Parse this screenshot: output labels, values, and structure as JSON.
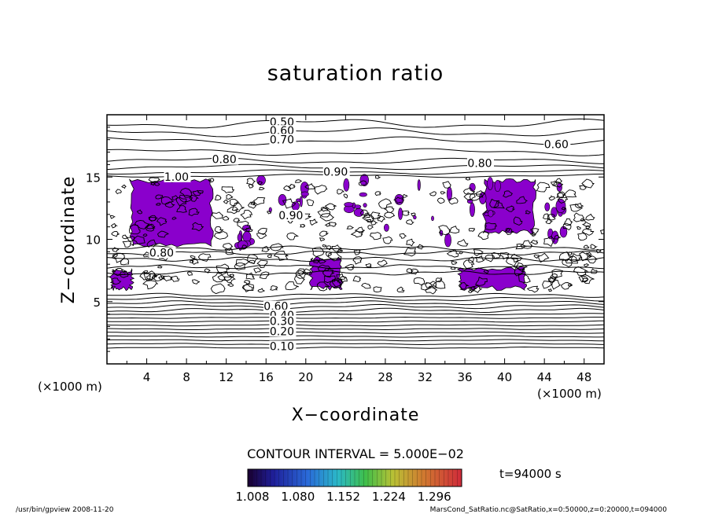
{
  "chart_data": {
    "type": "contour",
    "title": "saturation ratio",
    "xlabel": "X−coordinate",
    "ylabel": "Z−coordinate",
    "x_unit_label": "(×1000 m)",
    "z_unit_label": "(×1000 m)",
    "xlim": [
      0,
      50
    ],
    "ylim": [
      0,
      20
    ],
    "x_ticks": [
      4,
      8,
      12,
      16,
      20,
      24,
      28,
      32,
      36,
      40,
      44,
      48
    ],
    "y_ticks": [
      5,
      10,
      15
    ],
    "contour_interval_text": "CONTOUR INTERVAL = 5.000E−02",
    "time_label": "t=94000 s",
    "colorbar": {
      "tick_labels": [
        "1.008",
        "1.080",
        "1.152",
        "1.224",
        "1.296"
      ],
      "range": [
        1.008,
        1.296
      ]
    },
    "contour_labels": [
      {
        "text": "0.50",
        "x": 17.6,
        "z": 19.3
      },
      {
        "text": "0.60",
        "x": 17.6,
        "z": 18.6
      },
      {
        "text": "0.70",
        "x": 17.6,
        "z": 17.9
      },
      {
        "text": "0.60",
        "x": 45.2,
        "z": 17.5
      },
      {
        "text": "0.80",
        "x": 11.8,
        "z": 16.3
      },
      {
        "text": "0.80",
        "x": 37.5,
        "z": 16.0
      },
      {
        "text": "0.90",
        "x": 23.0,
        "z": 15.3
      },
      {
        "text": "1.00",
        "x": 7.0,
        "z": 14.9
      },
      {
        "text": "0.90",
        "x": 18.5,
        "z": 11.8
      },
      {
        "text": "0.80",
        "x": 5.5,
        "z": 8.8
      },
      {
        "text": "0.60",
        "x": 17.0,
        "z": 4.5
      },
      {
        "text": "0.40",
        "x": 17.6,
        "z": 3.8
      },
      {
        "text": "0.30",
        "x": 17.6,
        "z": 3.3
      },
      {
        "text": "0.20",
        "x": 17.6,
        "z": 2.5
      },
      {
        "text": "0.10",
        "x": 17.6,
        "z": 1.3
      }
    ],
    "supersaturated_regions": [
      {
        "x_range": [
          2.5,
          10.5
        ],
        "z_range": [
          9.5,
          14.8
        ],
        "level": "1.008-1.05"
      },
      {
        "x_range": [
          0.5,
          2.5
        ],
        "z_range": [
          6.0,
          7.5
        ],
        "level": "1.008-1.05"
      },
      {
        "x_range": [
          20.5,
          23.5
        ],
        "z_range": [
          6.0,
          8.5
        ],
        "level": "1.008-1.08"
      },
      {
        "x_range": [
          35.5,
          42.0
        ],
        "z_range": [
          6.0,
          7.7
        ],
        "level": "1.008-1.05"
      },
      {
        "x_range": [
          38.0,
          43.0
        ],
        "z_range": [
          10.5,
          14.8
        ],
        "level": "1.008-1.05"
      }
    ]
  },
  "footer": {
    "left": "/usr/bin/gpview  2008-11-20",
    "right": "MarsCond_SatRatio.nc@SatRatio,x=0:50000,z=0:20000,t=094000"
  },
  "colors": {
    "fill": "#8a00cc",
    "line": "#000000",
    "background": "#ffffff"
  }
}
